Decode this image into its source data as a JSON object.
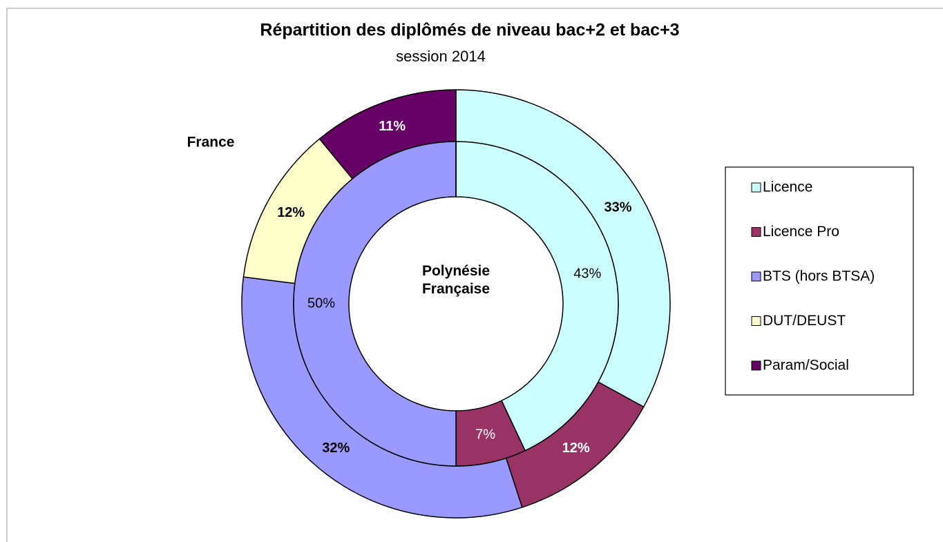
{
  "chart_data": {
    "type": "donut",
    "title": "Répartition des diplômés de niveau bac+2 et bac+3",
    "subtitle": "session 2014",
    "categories": [
      "Licence",
      "Licence Pro",
      "BTS (hors BTSA)",
      "DUT/DEUST",
      "Param/Social"
    ],
    "colors": [
      "#ccffff",
      "#993366",
      "#9999ff",
      "#ffffcc",
      "#660066"
    ],
    "series": [
      {
        "name": "France",
        "values": [
          33,
          12,
          32,
          12,
          11
        ],
        "value_labels": [
          "33%",
          "12%",
          "32%",
          "12%",
          "11%"
        ]
      },
      {
        "name": "Polynésie Française",
        "values": [
          43,
          7,
          50,
          0,
          0
        ],
        "value_labels": [
          "43%",
          "7%",
          "50%",
          null,
          null
        ]
      }
    ],
    "legend": "right"
  }
}
